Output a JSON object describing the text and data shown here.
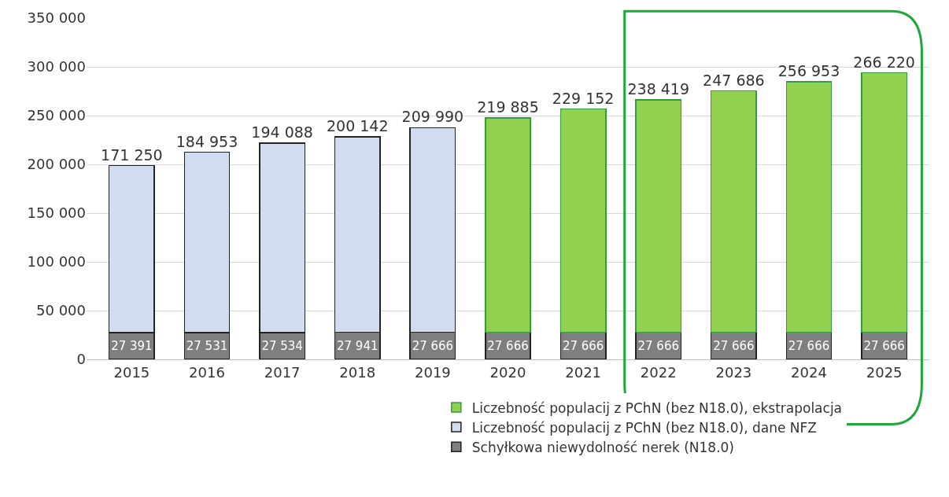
{
  "chart_data": {
    "type": "bar",
    "stacked": true,
    "categories": [
      "2015",
      "2016",
      "2017",
      "2018",
      "2019",
      "2020",
      "2021",
      "2022",
      "2023",
      "2024",
      "2025"
    ],
    "series": [
      {
        "name": "Schyłkowa niewydolność nerek (N18.0)",
        "color": "#7f7f7f",
        "values": [
          27391,
          27531,
          27534,
          27941,
          27666,
          27666,
          27666,
          27666,
          27666,
          27666,
          27666
        ],
        "value_labels": [
          "27 391",
          "27 531",
          "27 534",
          "27 941",
          "27 666",
          "27 666",
          "27 666",
          "27 666",
          "27 666",
          "27 666",
          "27 666"
        ]
      },
      {
        "name": "Liczebność populacij z PChN (bez N18.0), dane NFZ",
        "color": "#d0dcf0",
        "values": [
          171250,
          184953,
          194088,
          200142,
          209990,
          null,
          null,
          null,
          null,
          null,
          null
        ],
        "value_labels": [
          "171 250",
          "184 953",
          "194 088",
          "200 142",
          "209 990",
          null,
          null,
          null,
          null,
          null,
          null
        ]
      },
      {
        "name": "Liczebność populacij z PChN (bez N18.0), ekstrapolacja",
        "color": "#92d050",
        "values": [
          null,
          null,
          null,
          null,
          null,
          219885,
          229152,
          238419,
          247686,
          256953,
          266220
        ],
        "value_labels": [
          null,
          null,
          null,
          null,
          null,
          "219 885",
          "229 152",
          "238 419",
          "247 686",
          "256 953",
          "266 220"
        ]
      }
    ],
    "ylim": [
      0,
      350000
    ],
    "yticks": [
      0,
      {
        "value": 50000,
        "label": "50 000"
      },
      {
        "value": 100000,
        "label": "100 000"
      },
      {
        "value": 150000,
        "label": "150 000"
      },
      {
        "value": 200000,
        "label": "200 000"
      },
      {
        "value": 250000,
        "label": "250 000"
      },
      {
        "value": 300000,
        "label": "300 000"
      },
      {
        "value": 350000,
        "label": "350 000"
      }
    ],
    "grid": "y",
    "legend": "bottom"
  }
}
